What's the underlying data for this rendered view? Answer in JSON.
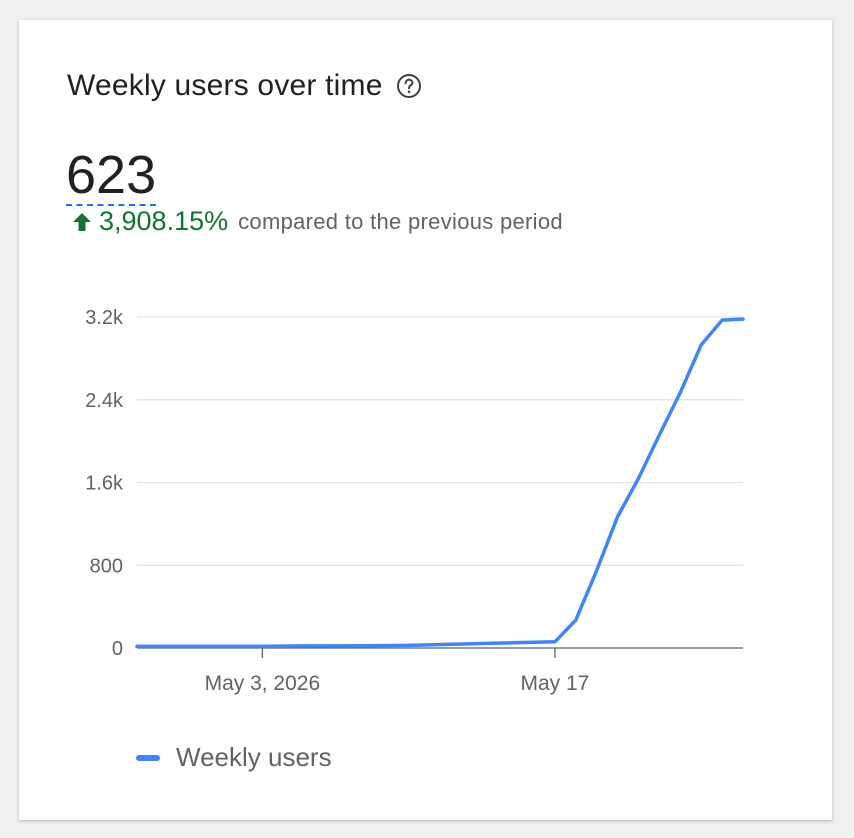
{
  "card": {
    "title": "Weekly users over time",
    "metric_value": "623",
    "change_pct": "3,908.15%",
    "change_text": "compared to the previous period",
    "change_color": "#137333"
  },
  "icons": {
    "help": "help-circle-icon",
    "trend": "arrow-up-icon"
  },
  "chart_data": {
    "type": "line",
    "title": "Weekly users over time",
    "xlabel": "",
    "ylabel": "",
    "x_tick_labels": [
      "May 3, 2026",
      "May 17"
    ],
    "y_ticks": [
      0,
      800,
      1600,
      2400,
      3200
    ],
    "y_tick_labels": [
      "0",
      "800",
      "1.6k",
      "2.4k",
      "3.2k"
    ],
    "ylim": [
      0,
      3200
    ],
    "xlim": [
      "2026-04-27",
      "2026-05-26"
    ],
    "grid": true,
    "legend_position": "bottom-left",
    "series": [
      {
        "name": "Weekly users",
        "color": "#4285f4",
        "x": [
          "2026-04-27",
          "2026-05-01",
          "2026-05-03",
          "2026-05-05",
          "2026-05-08",
          "2026-05-10",
          "2026-05-14",
          "2026-05-17",
          "2026-05-18",
          "2026-05-19",
          "2026-05-20",
          "2026-05-21",
          "2026-05-22",
          "2026-05-23",
          "2026-05-24",
          "2026-05-25",
          "2026-05-26"
        ],
        "values": [
          15,
          15,
          15,
          20,
          22,
          25,
          45,
          60,
          270,
          750,
          1270,
          1640,
          2060,
          2470,
          2930,
          3170,
          3180
        ]
      }
    ]
  }
}
